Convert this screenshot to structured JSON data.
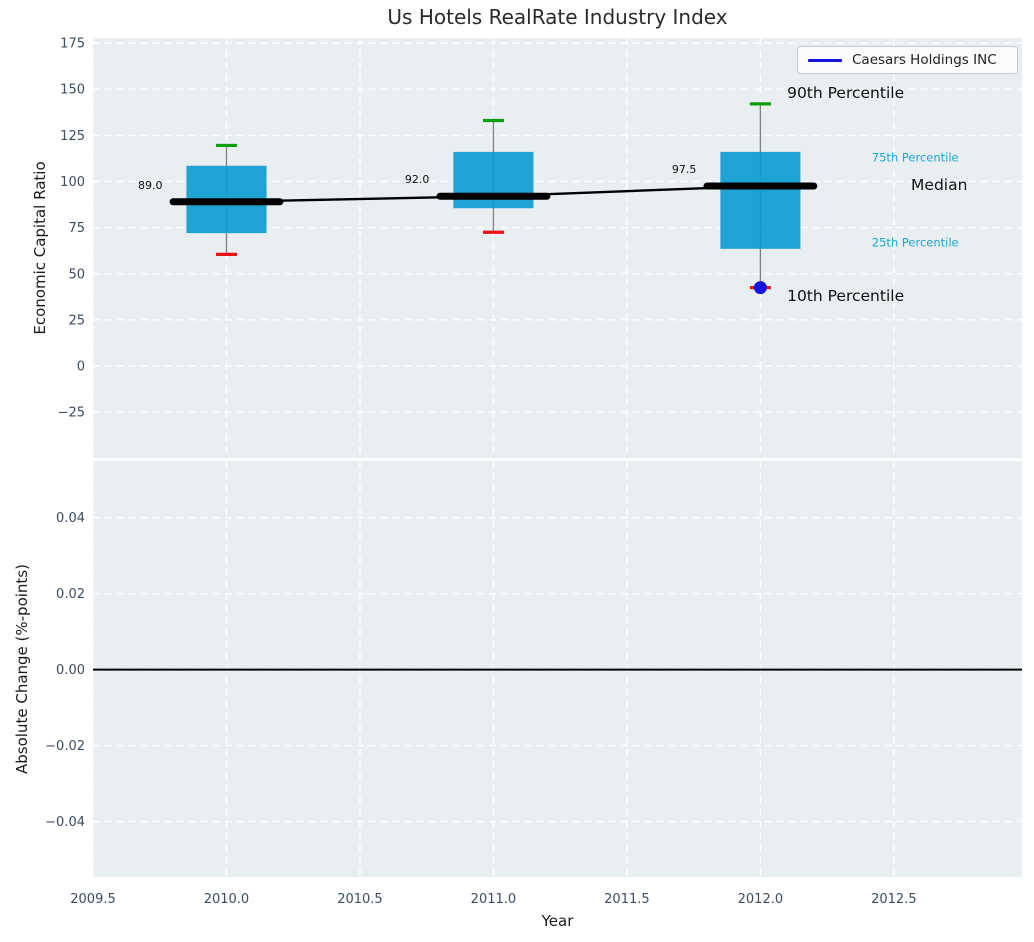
{
  "title": "Us Hotels RealRate Industry Index",
  "legend": {
    "label": "Caesars Holdings INC"
  },
  "axes": {
    "xlabel": "Year",
    "top_ylabel": "Economic Capital Ratio",
    "bottom_ylabel": "Absolute Change (%-points)"
  },
  "colors": {
    "panel_bg": "#e9eef1",
    "grid": "#ffffff",
    "tick_text": "#3d4c5f",
    "box_fill": "#089ace",
    "whisker": "#808080",
    "cap_90th": "#0b9e0b",
    "cap_10th": "#e81313",
    "median_line": "#000000",
    "company_blue": "#1414e0",
    "annotation_cyan": "#1ba6d4",
    "annotation_black": "#111111",
    "zero_line": "#000000"
  },
  "chart_data": {
    "type": "boxplot",
    "title": "Us Hotels RealRate Industry Index",
    "x": {
      "label": "Year",
      "lim": [
        2009.5,
        2012.98
      ],
      "ticks": [
        {
          "v": 2009.5,
          "label": "2009.5"
        },
        {
          "v": 2010.0,
          "label": "2010.0"
        },
        {
          "v": 2010.5,
          "label": "2010.5"
        },
        {
          "v": 2011.0,
          "label": "2011.0"
        },
        {
          "v": 2011.5,
          "label": "2011.5"
        },
        {
          "v": 2012.0,
          "label": "2012.0"
        },
        {
          "v": 2012.5,
          "label": "2012.5"
        }
      ]
    },
    "panels": [
      {
        "name": "economic-capital-ratio",
        "ylabel": "Economic Capital Ratio",
        "ylim": [
          -49.8,
          177.7
        ],
        "yticks": [
          {
            "v": 175,
            "label": "175"
          },
          {
            "v": 150,
            "label": "150"
          },
          {
            "v": 125,
            "label": "125"
          },
          {
            "v": 100,
            "label": "100"
          },
          {
            "v": 75,
            "label": "75"
          },
          {
            "v": 50,
            "label": "50"
          },
          {
            "v": 25,
            "label": "25"
          },
          {
            "v": 0,
            "label": "0"
          },
          {
            "v": -25,
            "label": "−25"
          }
        ],
        "boxes": [
          {
            "x": 2010,
            "p10": 60.5,
            "p25": 72,
            "median": 89,
            "p75": 108.5,
            "p90": 119.5,
            "median_label": "89.0"
          },
          {
            "x": 2011,
            "p10": 72.5,
            "p25": 85.5,
            "median": 92,
            "p75": 116,
            "p90": 133,
            "median_label": "92.0"
          },
          {
            "x": 2012,
            "p10": 42.5,
            "p25": 63.5,
            "median": 97.5,
            "p75": 116,
            "p90": 142,
            "median_label": "97.5"
          }
        ],
        "median_connector": {
          "x": [
            2010,
            2011,
            2012
          ],
          "y": [
            89,
            92,
            97.5
          ]
        },
        "company_series": {
          "name": "Caesars Holdings INC",
          "x": [
            2012
          ],
          "y": [
            42.5
          ]
        },
        "annotations": [
          {
            "text": "90th Percentile",
            "x": 2012.1,
            "y": 148,
            "style": "large-black",
            "anchor": "start"
          },
          {
            "text": "75th Percentile",
            "x": 2012.58,
            "y": 113,
            "style": "small-cyan",
            "anchor": "middle"
          },
          {
            "text": "Median",
            "x": 2012.67,
            "y": 98,
            "style": "large-black",
            "anchor": "middle"
          },
          {
            "text": "25th Percentile",
            "x": 2012.58,
            "y": 67,
            "style": "small-cyan",
            "anchor": "middle"
          },
          {
            "text": "10th Percentile",
            "x": 2012.1,
            "y": 38,
            "style": "large-black",
            "anchor": "start"
          }
        ]
      },
      {
        "name": "absolute-change",
        "ylabel": "Absolute Change (%-points)",
        "ylim": [
          -0.0546,
          0.0549
        ],
        "yticks": [
          {
            "v": 0.04,
            "label": "0.04"
          },
          {
            "v": 0.02,
            "label": "0.02"
          },
          {
            "v": 0.0,
            "label": "0.00"
          },
          {
            "v": -0.02,
            "label": "−0.02"
          },
          {
            "v": -0.04,
            "label": "−0.04"
          }
        ],
        "zero_line_y": 0
      }
    ]
  }
}
